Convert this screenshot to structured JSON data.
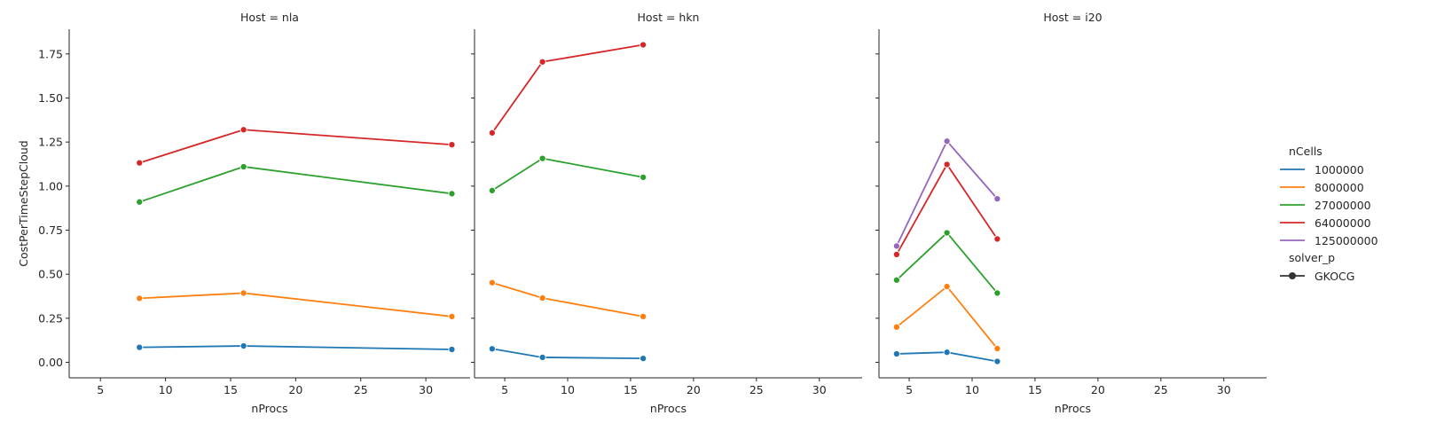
{
  "chart_data": {
    "type": "line",
    "facet_variable": "Host",
    "facets": [
      {
        "title": "Host = nla",
        "x": [
          8,
          16,
          32
        ],
        "series": [
          {
            "name": "1000000",
            "values": [
              0.085,
              0.093,
              0.073
            ]
          },
          {
            "name": "8000000",
            "values": [
              0.363,
              0.393,
              0.26
            ]
          },
          {
            "name": "27000000",
            "values": [
              0.91,
              1.11,
              0.957
            ]
          },
          {
            "name": "64000000",
            "values": [
              1.132,
              1.32,
              1.235
            ]
          }
        ]
      },
      {
        "title": "Host = hkn",
        "x": [
          4,
          8,
          16
        ],
        "series": [
          {
            "name": "1000000",
            "values": [
              0.077,
              0.028,
              0.022
            ]
          },
          {
            "name": "8000000",
            "values": [
              0.452,
              0.365,
              0.26
            ]
          },
          {
            "name": "27000000",
            "values": [
              0.975,
              1.157,
              1.05
            ]
          },
          {
            "name": "64000000",
            "values": [
              1.302,
              1.705,
              1.802
            ]
          }
        ]
      },
      {
        "title": "Host = i20",
        "x": [
          4,
          8,
          12
        ],
        "series": [
          {
            "name": "1000000",
            "values": [
              0.048,
              0.057,
              0.005
            ]
          },
          {
            "name": "8000000",
            "values": [
              0.2,
              0.43,
              0.078
            ]
          },
          {
            "name": "27000000",
            "values": [
              0.467,
              0.735,
              0.393
            ]
          },
          {
            "name": "64000000",
            "values": [
              0.612,
              1.123,
              0.7
            ]
          },
          {
            "name": "125000000",
            "values": [
              0.66,
              1.255,
              0.928
            ]
          }
        ]
      }
    ],
    "xlabel": "nProcs",
    "ylabel": "CostPerTimeStepCloud",
    "xlim": [
      2.6,
      33.4
    ],
    "ylim": [
      -0.088,
      1.89
    ],
    "x_ticks": [
      5,
      10,
      15,
      20,
      25,
      30
    ],
    "y_ticks": [
      0.0,
      0.25,
      0.5,
      0.75,
      1.0,
      1.25,
      1.5,
      1.75
    ],
    "y_tick_labels": [
      "0.00",
      "0.25",
      "0.50",
      "0.75",
      "1.00",
      "1.25",
      "1.50",
      "1.75"
    ],
    "sharey": true,
    "grid": false,
    "legend": {
      "placement": "right",
      "hue_title": "nCells",
      "hue_entries": [
        {
          "label": "1000000",
          "color": "#1f77b4"
        },
        {
          "label": "8000000",
          "color": "#ff7f0e"
        },
        {
          "label": "27000000",
          "color": "#2ca02c"
        },
        {
          "label": "64000000",
          "color": "#d62728"
        },
        {
          "label": "125000000",
          "color": "#9467bd"
        }
      ],
      "style_title": "solver_p",
      "style_entries": [
        {
          "label": "GKOCG",
          "color": "#333333",
          "marker": "circle"
        }
      ]
    }
  }
}
